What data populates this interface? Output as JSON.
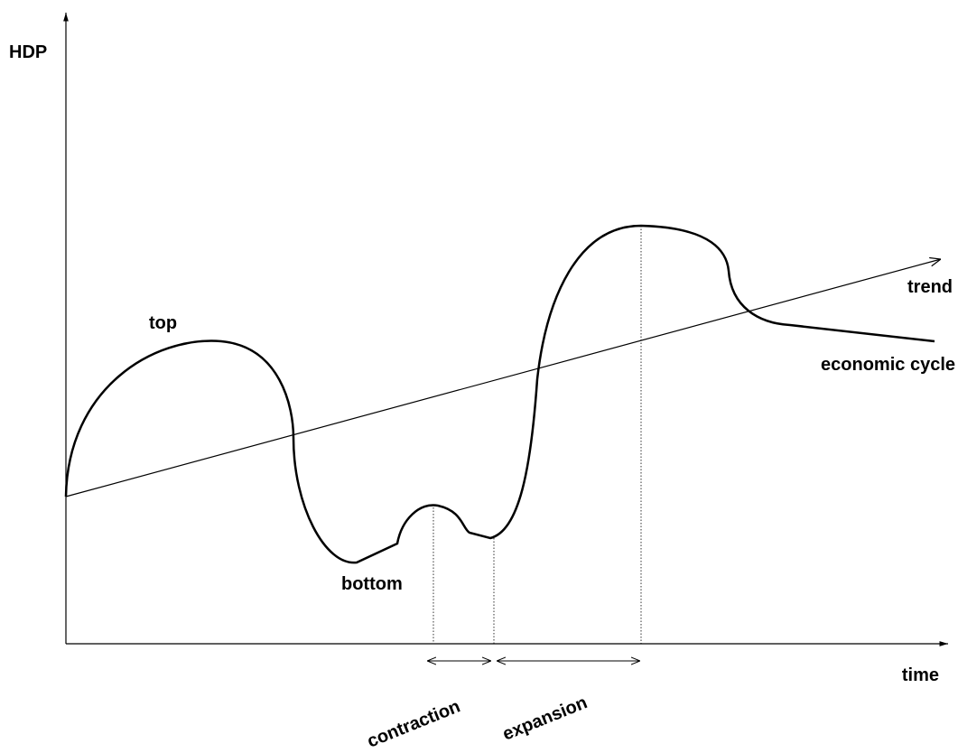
{
  "axes": {
    "y_label": "HDP",
    "x_label": "time"
  },
  "labels": {
    "trend": "trend",
    "top": "top",
    "bottom": "bottom",
    "cycle": "economic cycle",
    "contraction": "contraction",
    "expansion": "expansion"
  }
}
